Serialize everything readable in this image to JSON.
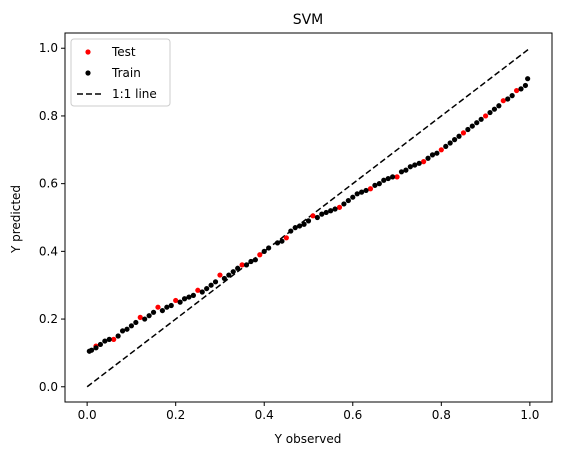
{
  "chart_data": {
    "type": "scatter",
    "title": "SVM",
    "xlabel": "Y observed",
    "ylabel": "Y predicted",
    "xlim": [
      -0.05,
      1.05
    ],
    "ylim": [
      -0.045,
      1.045
    ],
    "x_ticks": [
      0.0,
      0.2,
      0.4,
      0.6,
      0.8,
      1.0
    ],
    "x_tick_labels": [
      "0.0",
      "0.2",
      "0.4",
      "0.6",
      "0.8",
      "1.0"
    ],
    "y_ticks": [
      0.0,
      0.2,
      0.4,
      0.6,
      0.8,
      1.0
    ],
    "y_tick_labels": [
      "0.0",
      "0.2",
      "0.4",
      "0.6",
      "0.8",
      "1.0"
    ],
    "grid": false,
    "legend_position": "top-left",
    "series": [
      {
        "name": "Test",
        "kind": "points",
        "color": "#ff0000",
        "x": [
          0.02,
          0.06,
          0.12,
          0.16,
          0.2,
          0.25,
          0.3,
          0.35,
          0.39,
          0.45,
          0.51,
          0.57,
          0.64,
          0.7,
          0.76,
          0.8,
          0.85,
          0.9,
          0.94,
          0.97
        ],
        "y": [
          0.12,
          0.14,
          0.205,
          0.235,
          0.255,
          0.285,
          0.33,
          0.36,
          0.39,
          0.44,
          0.505,
          0.53,
          0.585,
          0.62,
          0.665,
          0.7,
          0.75,
          0.8,
          0.845,
          0.875
        ]
      },
      {
        "name": "Train",
        "kind": "points",
        "color": "#000000",
        "x": [
          0.005,
          0.01,
          0.02,
          0.03,
          0.04,
          0.05,
          0.07,
          0.08,
          0.09,
          0.1,
          0.11,
          0.13,
          0.14,
          0.15,
          0.17,
          0.18,
          0.19,
          0.21,
          0.22,
          0.23,
          0.24,
          0.26,
          0.27,
          0.28,
          0.29,
          0.31,
          0.32,
          0.33,
          0.34,
          0.36,
          0.37,
          0.38,
          0.4,
          0.41,
          0.43,
          0.44,
          0.46,
          0.47,
          0.48,
          0.49,
          0.5,
          0.52,
          0.53,
          0.54,
          0.55,
          0.56,
          0.58,
          0.59,
          0.6,
          0.61,
          0.62,
          0.63,
          0.65,
          0.66,
          0.67,
          0.68,
          0.69,
          0.71,
          0.72,
          0.73,
          0.74,
          0.75,
          0.77,
          0.78,
          0.79,
          0.81,
          0.82,
          0.83,
          0.84,
          0.86,
          0.87,
          0.88,
          0.89,
          0.91,
          0.92,
          0.93,
          0.95,
          0.96,
          0.98,
          0.99,
          0.995
        ],
        "y": [
          0.105,
          0.108,
          0.115,
          0.125,
          0.135,
          0.14,
          0.15,
          0.165,
          0.17,
          0.18,
          0.19,
          0.2,
          0.21,
          0.22,
          0.225,
          0.235,
          0.24,
          0.25,
          0.26,
          0.265,
          0.27,
          0.28,
          0.29,
          0.3,
          0.31,
          0.32,
          0.33,
          0.34,
          0.35,
          0.36,
          0.37,
          0.375,
          0.4,
          0.41,
          0.425,
          0.43,
          0.46,
          0.47,
          0.475,
          0.48,
          0.49,
          0.5,
          0.51,
          0.515,
          0.52,
          0.525,
          0.54,
          0.55,
          0.56,
          0.57,
          0.575,
          0.58,
          0.595,
          0.6,
          0.61,
          0.615,
          0.62,
          0.635,
          0.64,
          0.65,
          0.655,
          0.66,
          0.675,
          0.685,
          0.69,
          0.71,
          0.72,
          0.73,
          0.74,
          0.76,
          0.77,
          0.78,
          0.79,
          0.81,
          0.82,
          0.83,
          0.85,
          0.86,
          0.88,
          0.89,
          0.91
        ]
      },
      {
        "name": "1:1 line",
        "kind": "line",
        "color": "#000000",
        "dash": "dashed",
        "x": [
          0.0,
          1.0
        ],
        "y": [
          0.0,
          1.0
        ]
      }
    ]
  }
}
